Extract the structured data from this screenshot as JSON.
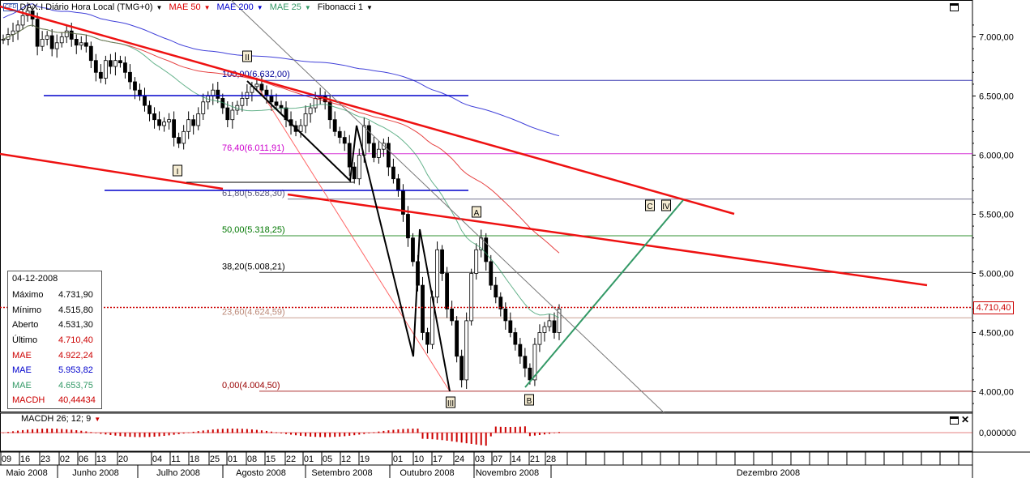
{
  "toolbar": {
    "symbol": "DAX.I Diário Hora Local (TMG+0)",
    "cfd_badge": "CFD",
    "indicators": [
      {
        "label": "MAE 50",
        "color": "#dd0000"
      },
      {
        "label": "MAE 200",
        "color": "#0000cc"
      },
      {
        "label": "MAE 25",
        "color": "#339966"
      },
      {
        "label": "Fibonacci 1",
        "color": "#000000"
      }
    ]
  },
  "infobox": {
    "date": "04-12-2008",
    "rows": [
      {
        "label": "Máximo",
        "value": "4.731,90",
        "label_color": "#000000",
        "value_color": "#000000"
      },
      {
        "label": "Mínimo",
        "value": "4.515,80",
        "label_color": "#000000",
        "value_color": "#000000"
      },
      {
        "label": "Aberto",
        "value": "4.531,30",
        "label_color": "#000000",
        "value_color": "#000000"
      },
      {
        "label": "Último",
        "value": "4.710,40",
        "label_color": "#000000",
        "value_color": "#cc0000"
      },
      {
        "label": "MAE",
        "value": "4.922,24",
        "label_color": "#cc0000",
        "value_color": "#cc0000"
      },
      {
        "label": "MAE",
        "value": "5.953,82",
        "label_color": "#0000cc",
        "value_color": "#0000cc"
      },
      {
        "label": "MAE",
        "value": "4.653,75",
        "label_color": "#339966",
        "value_color": "#339966"
      },
      {
        "label": "MACDH",
        "value": "40,44434",
        "label_color": "#cc0000",
        "value_color": "#cc0000"
      }
    ]
  },
  "macd_panel": {
    "label": "MACDH 26; 12; 9",
    "axis_label": "0,000000"
  },
  "price_flag": "4.710,40",
  "fib_levels": [
    {
      "label": "100,00(6.632,00)",
      "value": 6632,
      "color": "#000099"
    },
    {
      "label": "76,40(6.011,91)",
      "value": 6011.91,
      "color": "#cc00cc"
    },
    {
      "label": "61,80(5.628,30)",
      "value": 5628.3,
      "color": "#555577"
    },
    {
      "label": "50,00(5.318,25)",
      "value": 5318.25,
      "color": "#007700"
    },
    {
      "label": "38,20(5.008,21)",
      "value": 5008.21,
      "color": "#000000"
    },
    {
      "label": "23,60(4.624,59)",
      "value": 4624.59,
      "color": "#bb8877"
    },
    {
      "label": "0,00(4.004,50)",
      "value": 4004.5,
      "color": "#990000"
    }
  ],
  "wave_labels": [
    "I",
    "II",
    "III",
    "IV",
    "A",
    "B",
    "C"
  ],
  "chart_data": {
    "type": "candlestick",
    "y_axis": {
      "min": 3800,
      "max": 7300,
      "ticks": [
        {
          "v": 7000,
          "label": "7.000,00"
        },
        {
          "v": 6500,
          "label": "6.500,00"
        },
        {
          "v": 6000,
          "label": "6.000,00"
        },
        {
          "v": 5500,
          "label": "5.500,00"
        },
        {
          "v": 5000,
          "label": "5.000,00"
        },
        {
          "v": 4500,
          "label": "4.500,00"
        },
        {
          "v": 4000,
          "label": "4.000,00"
        }
      ]
    },
    "x_day_labels": [
      "09",
      "16",
      "23",
      "02",
      "06",
      "13",
      "20",
      "04",
      "11",
      "18",
      "25",
      "01",
      "08",
      "15",
      "22",
      "01",
      "05",
      "12",
      "19",
      "01",
      "10",
      "17",
      "24",
      "03",
      "07",
      "14",
      "21",
      "28"
    ],
    "x_month_labels": [
      "Maio 2008",
      "Junho 2008",
      "Julho 2008",
      "Agosto 2008",
      "Setembro 2008",
      "Outubro 2008",
      "Novembro 2008",
      "Dezembro 2008"
    ],
    "last_close": 4710.4,
    "closes": [
      6980,
      7020,
      7050,
      7100,
      7180,
      7220,
      7150,
      6920,
      6980,
      7010,
      6900,
      6950,
      7000,
      7050,
      6980,
      6930,
      6950,
      6920,
      6800,
      6700,
      6650,
      6800,
      6750,
      6800,
      6780,
      6700,
      6620,
      6550,
      6500,
      6420,
      6350,
      6300,
      6250,
      6280,
      6300,
      6150,
      6100,
      6200,
      6300,
      6250,
      6350,
      6450,
      6500,
      6550,
      6480,
      6400,
      6300,
      6380,
      6420,
      6480,
      6530,
      6580,
      6600,
      6550,
      6500,
      6450,
      6420,
      6400,
      6300,
      6250,
      6200,
      6250,
      6350,
      6400,
      6480,
      6500,
      6450,
      6300,
      6200,
      6150,
      6100,
      5900,
      5800,
      6000,
      6250,
      6100,
      5980,
      6050,
      6100,
      5900,
      5800,
      5700,
      5500,
      5300,
      5100,
      4900,
      4500,
      4400,
      4800,
      5200,
      5000,
      4700,
      4600,
      4300,
      4100,
      4600,
      5000,
      5200,
      5300,
      5100,
      4900,
      4800,
      4700,
      4600,
      4500,
      4400,
      4300,
      4200,
      4100,
      4400,
      4500,
      4550,
      4600,
      4500,
      4700
    ]
  }
}
